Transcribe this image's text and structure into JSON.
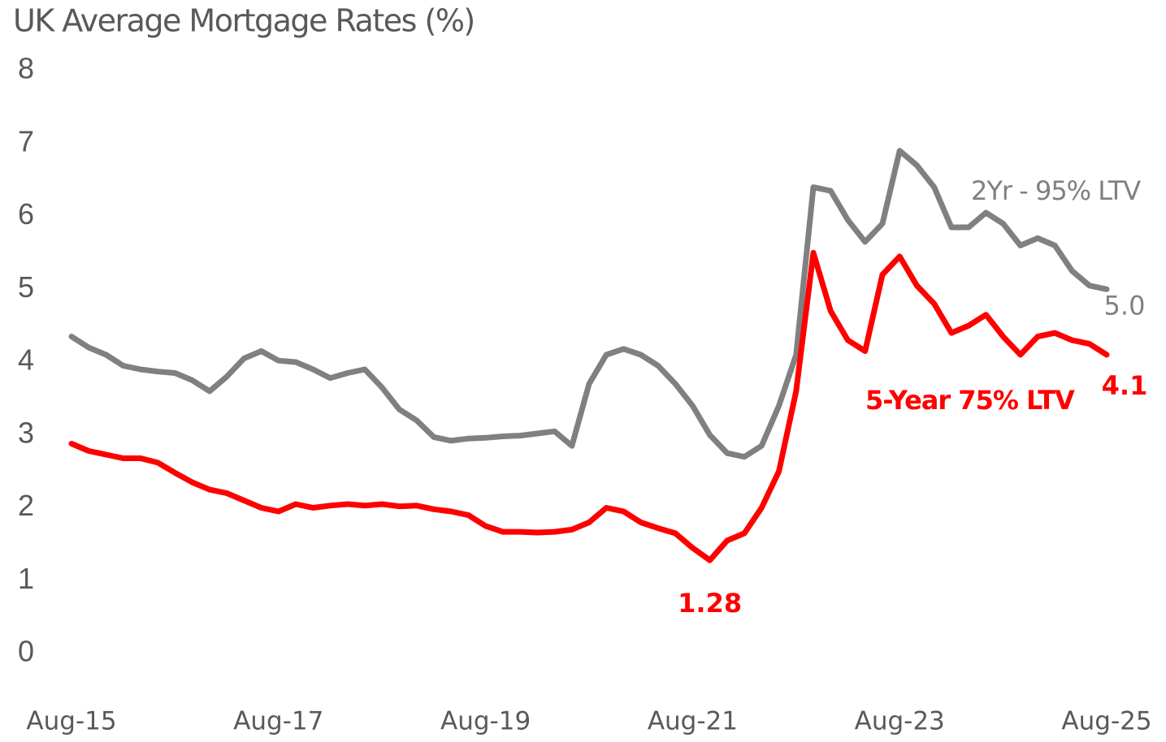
{
  "chart_data": {
    "type": "line",
    "title": "UK Average Mortgage Rates (%)",
    "categories": [
      "Aug-15",
      null,
      null,
      null,
      null,
      null,
      null,
      null,
      null,
      null,
      null,
      null,
      "Aug-17",
      null,
      null,
      null,
      null,
      null,
      null,
      null,
      null,
      null,
      null,
      null,
      "Aug-19",
      null,
      null,
      null,
      null,
      null,
      null,
      null,
      null,
      null,
      null,
      null,
      "Aug-21",
      null,
      null,
      null,
      null,
      null,
      null,
      null,
      null,
      null,
      null,
      null,
      "Aug-23",
      null,
      null,
      null,
      null,
      null,
      null,
      null,
      null,
      null,
      null,
      null,
      "Aug-25"
    ],
    "series": [
      {
        "name": "2Yr - 95% LTV",
        "color": "#808080",
        "values": [
          4.35,
          4.2,
          4.1,
          3.95,
          3.9,
          3.87,
          3.85,
          3.75,
          3.6,
          3.8,
          4.05,
          4.15,
          4.02,
          4.0,
          3.9,
          3.78,
          3.85,
          3.9,
          3.65,
          3.35,
          3.2,
          2.97,
          2.92,
          2.95,
          2.96,
          2.98,
          2.99,
          3.02,
          3.05,
          2.85,
          3.7,
          4.1,
          4.18,
          4.1,
          3.95,
          3.7,
          3.4,
          3.0,
          2.75,
          2.7,
          2.85,
          3.4,
          4.1,
          6.4,
          6.35,
          5.95,
          5.65,
          5.9,
          6.9,
          6.7,
          6.4,
          5.85,
          5.85,
          6.05,
          5.9,
          5.6,
          5.7,
          5.6,
          5.25,
          5.05,
          5.0
        ],
        "value_labels": [
          null,
          null,
          null,
          null,
          null,
          null,
          null,
          null,
          null,
          null,
          null,
          null,
          null,
          null,
          null,
          null,
          null,
          null,
          null,
          null,
          null,
          null,
          null,
          null,
          null,
          null,
          null,
          null,
          null,
          null,
          null,
          null,
          null,
          null,
          null,
          null,
          null,
          null,
          null,
          null,
          null,
          null,
          null,
          null,
          null,
          null,
          null,
          null,
          null,
          null,
          null,
          null,
          null,
          null,
          null,
          null,
          null,
          null,
          null,
          null,
          "5.0"
        ]
      },
      {
        "name": "5-Year 75% LTV",
        "color": "#ff0000",
        "values": [
          2.88,
          2.78,
          2.73,
          2.68,
          2.68,
          2.62,
          2.48,
          2.35,
          2.25,
          2.2,
          2.1,
          2.0,
          1.95,
          2.05,
          2.0,
          2.03,
          2.05,
          2.03,
          2.05,
          2.02,
          2.03,
          1.98,
          1.95,
          1.9,
          1.75,
          1.67,
          1.67,
          1.66,
          1.67,
          1.7,
          1.8,
          2.0,
          1.95,
          1.8,
          1.72,
          1.65,
          1.45,
          1.28,
          1.55,
          1.65,
          2.0,
          2.5,
          3.6,
          5.5,
          4.7,
          4.3,
          4.15,
          5.2,
          5.45,
          5.05,
          4.8,
          4.4,
          4.5,
          4.65,
          4.35,
          4.1,
          4.35,
          4.4,
          4.3,
          4.25,
          4.1
        ],
        "value_labels": [
          null,
          null,
          null,
          null,
          null,
          null,
          null,
          null,
          null,
          null,
          null,
          null,
          null,
          null,
          null,
          null,
          null,
          null,
          null,
          null,
          null,
          null,
          null,
          null,
          null,
          null,
          null,
          null,
          null,
          null,
          null,
          null,
          null,
          null,
          null,
          null,
          null,
          "1.28",
          null,
          null,
          null,
          null,
          null,
          null,
          null,
          null,
          null,
          null,
          null,
          null,
          null,
          null,
          null,
          null,
          null,
          null,
          null,
          null,
          null,
          null,
          "4.1"
        ]
      }
    ],
    "ylim": [
      0,
      8
    ],
    "yticks": [
      0,
      1,
      2,
      3,
      4,
      5,
      6,
      7,
      8
    ],
    "grid": false
  }
}
